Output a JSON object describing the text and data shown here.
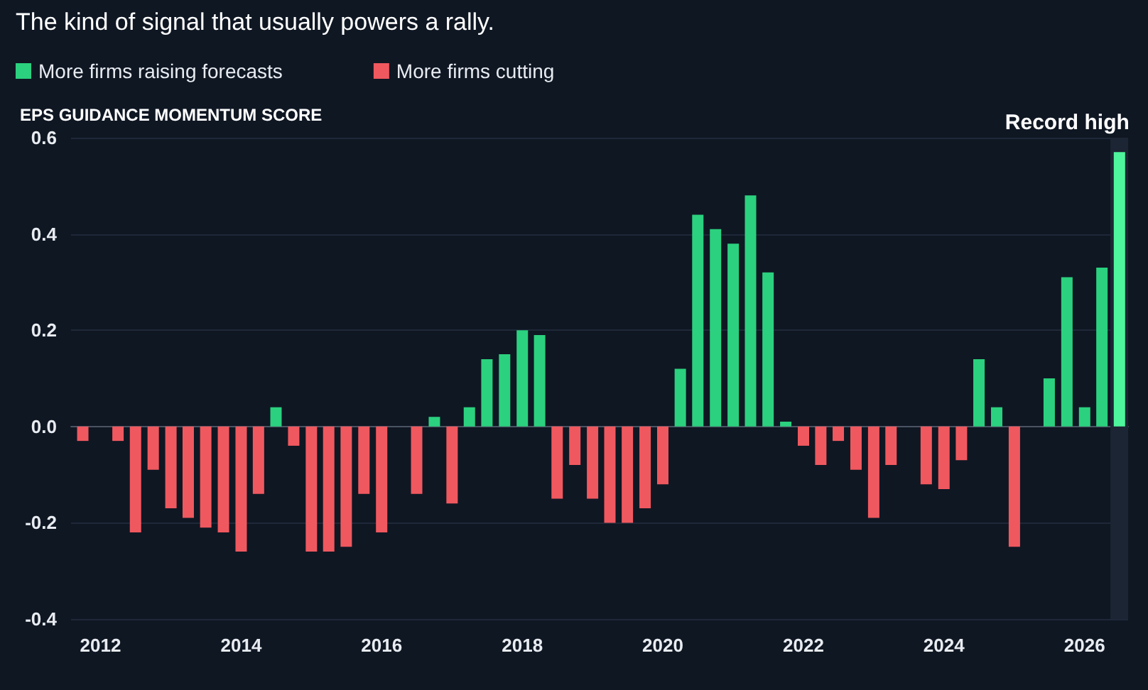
{
  "chart_data": {
    "type": "bar",
    "title": "The kind of signal that usually powers a rally.",
    "ylabel": "EPS GUIDANCE MOMENTUM SCORE",
    "x": [
      "2011-10",
      "2012-01",
      "2012-04",
      "2012-07",
      "2012-10",
      "2013-01",
      "2013-04",
      "2013-07",
      "2013-10",
      "2014-01",
      "2014-04",
      "2014-07",
      "2014-10",
      "2015-01",
      "2015-04",
      "2015-07",
      "2015-10",
      "2016-01",
      "2016-04",
      "2016-07",
      "2016-10",
      "2017-01",
      "2017-04",
      "2017-07",
      "2017-10",
      "2018-01",
      "2018-04",
      "2018-07",
      "2018-10",
      "2019-01",
      "2019-04",
      "2019-07",
      "2019-10",
      "2020-01",
      "2020-04",
      "2020-07",
      "2020-10",
      "2021-01",
      "2021-04",
      "2021-07",
      "2021-10",
      "2022-01",
      "2022-04",
      "2022-07",
      "2022-10",
      "2023-01",
      "2023-04",
      "2023-07",
      "2023-10",
      "2024-01",
      "2024-04",
      "2024-07",
      "2024-10",
      "2025-01",
      "2025-04",
      "2025-07",
      "2025-10",
      "2026-01",
      "2026-04",
      "2026-07"
    ],
    "series": [
      {
        "name": "More firms raising forecasts",
        "color": "#2bd17e",
        "values": [
          null,
          null,
          null,
          null,
          null,
          null,
          null,
          null,
          null,
          null,
          null,
          0.04,
          null,
          null,
          null,
          null,
          null,
          null,
          null,
          null,
          0.02,
          null,
          0.04,
          0.14,
          0.15,
          0.2,
          0.19,
          null,
          null,
          null,
          null,
          null,
          null,
          null,
          0.12,
          0.44,
          0.41,
          0.38,
          0.48,
          0.32,
          0.01,
          null,
          null,
          null,
          null,
          null,
          null,
          null,
          null,
          null,
          null,
          0.14,
          0.04,
          null,
          null,
          0.1,
          0.31,
          0.04,
          0.33,
          0.57
        ],
        "colors": [
          null,
          null,
          null,
          null,
          null,
          null,
          null,
          null,
          null,
          null,
          null,
          "#2bd17e",
          null,
          null,
          null,
          null,
          null,
          null,
          null,
          null,
          "#2bd17e",
          null,
          "#2bd17e",
          "#2bd17e",
          "#2bd17e",
          "#2bd17e",
          "#2bd17e",
          null,
          null,
          null,
          null,
          null,
          null,
          null,
          "#2bd17e",
          "#2bd17e",
          "#2bd17e",
          "#2bd17e",
          "#2bd17e",
          "#2bd17e",
          "#2bd17e",
          null,
          null,
          null,
          null,
          null,
          null,
          null,
          null,
          null,
          null,
          "#2bd17e",
          "#2bd17e",
          null,
          null,
          "#2bd17e",
          "#2bd17e",
          "#2bd17e",
          "#2bd17e",
          "#4ef59c"
        ]
      },
      {
        "name": "More firms cutting",
        "color": "#f0585f",
        "values": [
          -0.03,
          null,
          -0.03,
          -0.22,
          -0.09,
          -0.17,
          -0.19,
          -0.21,
          -0.22,
          -0.26,
          -0.14,
          null,
          -0.04,
          -0.26,
          -0.26,
          -0.25,
          -0.14,
          -0.22,
          null,
          -0.14,
          null,
          -0.16,
          null,
          null,
          null,
          null,
          null,
          -0.15,
          -0.08,
          -0.15,
          -0.2,
          -0.2,
          -0.17,
          -0.12,
          null,
          null,
          null,
          null,
          null,
          null,
          null,
          -0.04,
          -0.08,
          -0.03,
          -0.09,
          -0.19,
          -0.08,
          null,
          -0.12,
          -0.13,
          -0.07,
          null,
          null,
          -0.25,
          null,
          null,
          null,
          null,
          null,
          null
        ]
      }
    ],
    "xlim": [
      "2011-08",
      "2026-08-15"
    ],
    "xticks": [
      {
        "value": "2012",
        "label": "2012"
      },
      {
        "value": "2014",
        "label": "2014"
      },
      {
        "value": "2016",
        "label": "2016"
      },
      {
        "value": "2018",
        "label": "2018"
      },
      {
        "value": "2020",
        "label": "2020"
      },
      {
        "value": "2022",
        "label": "2022"
      },
      {
        "value": "2024",
        "label": "2024"
      },
      {
        "value": "2026",
        "label": "2026"
      }
    ],
    "ylim": [
      -0.4,
      0.6
    ],
    "yticks": [
      -0.4,
      -0.2,
      {
        "value": 0,
        "label": "0.0"
      },
      0.2,
      0.4,
      0.6
    ],
    "grid": "y",
    "legend": "top left",
    "bands": [
      {
        "axis": "x",
        "from": "2026-05-15",
        "to": "2026-08-15",
        "color": "#1c2533"
      }
    ],
    "annotations": [
      {
        "text": "Record high",
        "x": "2026-07",
        "y": 0.57
      }
    ]
  }
}
